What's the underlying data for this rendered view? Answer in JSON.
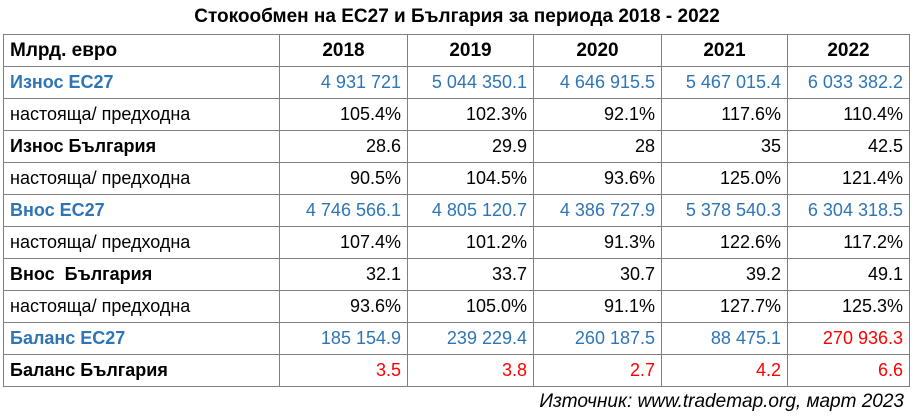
{
  "title": "Стокообмен на ЕС27 и България за периода 2018 - 2022",
  "table": {
    "header_label": "Млрд. евро",
    "years": [
      "2018",
      "2019",
      "2020",
      "2021",
      "2022"
    ],
    "rows": [
      {
        "label": "Износ ЕС27",
        "values": [
          "4 931 721",
          "5 044 350.1",
          "4 646 915.5",
          "5 467 015.4",
          "6 033 382.2"
        ]
      },
      {
        "label": "настояща/ предходна",
        "values": [
          "105.4%",
          "102.3%",
          "92.1%",
          "117.6%",
          "110.4%"
        ]
      },
      {
        "label": "Износ България",
        "values": [
          "28.6",
          "29.9",
          "28",
          "35",
          "42.5"
        ]
      },
      {
        "label": "настояща/ предходна",
        "values": [
          "90.5%",
          "104.5%",
          "93.6%",
          "125.0%",
          "121.4%"
        ]
      },
      {
        "label": "Внос ЕС27",
        "values": [
          "4 746 566.1",
          "4 805 120.7",
          "4 386 727.9",
          "5 378 540.3",
          "6 304 318.5"
        ]
      },
      {
        "label": "настояща/ предходна",
        "values": [
          "107.4%",
          "101.2%",
          "91.3%",
          "122.6%",
          "117.2%"
        ]
      },
      {
        "label": "Внос  България",
        "values": [
          "32.1",
          "33.7",
          "30.7",
          "39.2",
          "49.1"
        ]
      },
      {
        "label": "настояща/ предходна",
        "values": [
          "93.6%",
          "105.0%",
          "91.1%",
          "127.7%",
          "125.3%"
        ]
      },
      {
        "label": "Баланс ЕС27",
        "values": [
          "185 154.9",
          "239 229.4",
          "260 187.5",
          "88 475.1",
          "270 936.3"
        ]
      },
      {
        "label": "Баланс България",
        "values": [
          "3.5",
          "3.8",
          "2.7",
          "4.2",
          "6.6"
        ]
      }
    ]
  },
  "colors": {
    "blue": "#2e75b6",
    "red": "#ff0000",
    "black": "#000000",
    "border": "#7f7f7f"
  },
  "source": "Източник: www.trademap.org, март 2023"
}
